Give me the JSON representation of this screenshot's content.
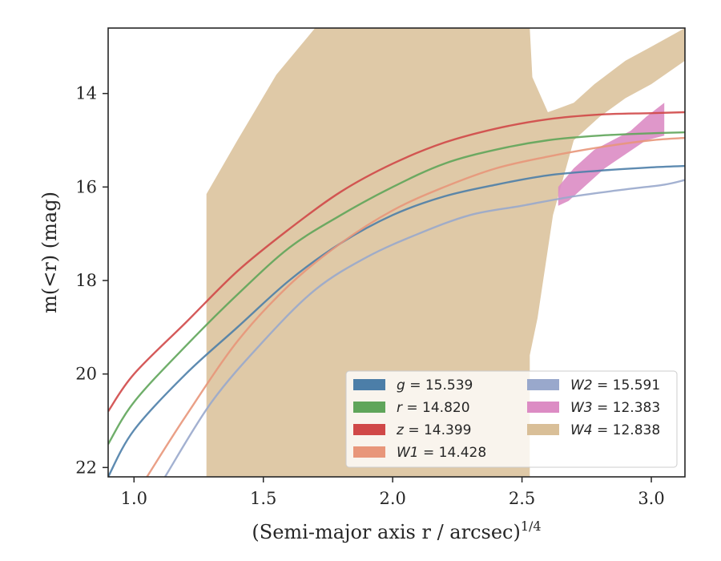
{
  "chart_data": {
    "type": "line",
    "xlabel": "(Semi-major axis r / arcsec)",
    "xlabel_sup": "1/4",
    "ylabel": "m(<r) (mag)",
    "xlim": [
      0.9,
      3.13
    ],
    "ylim": [
      22.2,
      12.6
    ],
    "y_inverted": true,
    "grid": false,
    "legend_location": "lower-right",
    "x_ticks": [
      {
        "value": 1.0,
        "label": "1.0"
      },
      {
        "value": 1.5,
        "label": "1.5"
      },
      {
        "value": 2.0,
        "label": "2.0"
      },
      {
        "value": 2.5,
        "label": "2.5"
      },
      {
        "value": 3.0,
        "label": "3.0"
      }
    ],
    "y_ticks": [
      {
        "value": 14,
        "label": "14"
      },
      {
        "value": 16,
        "label": "16"
      },
      {
        "value": 18,
        "label": "18"
      },
      {
        "value": 20,
        "label": "20"
      },
      {
        "value": 22,
        "label": "22"
      }
    ],
    "series": [
      {
        "name": "g",
        "value": "15.539",
        "color": "#4c7ea8",
        "x": [
          0.9,
          1.0,
          1.2,
          1.4,
          1.6,
          1.8,
          2.0,
          2.2,
          2.4,
          2.6,
          2.8,
          3.0,
          3.13
        ],
        "y": [
          22.2,
          21.2,
          20.0,
          19.0,
          18.0,
          17.2,
          16.6,
          16.2,
          15.95,
          15.75,
          15.65,
          15.58,
          15.55
        ]
      },
      {
        "name": "r",
        "value": "14.820",
        "color": "#5fa55a",
        "x": [
          0.9,
          1.0,
          1.2,
          1.4,
          1.6,
          1.8,
          2.0,
          2.2,
          2.4,
          2.6,
          2.8,
          3.0,
          3.13
        ],
        "y": [
          21.5,
          20.6,
          19.4,
          18.3,
          17.3,
          16.6,
          16.0,
          15.5,
          15.2,
          15.0,
          14.9,
          14.85,
          14.83
        ]
      },
      {
        "name": "z",
        "value": "14.399",
        "color": "#d04848",
        "x": [
          0.9,
          1.0,
          1.2,
          1.4,
          1.6,
          1.8,
          2.0,
          2.2,
          2.4,
          2.6,
          2.8,
          3.0,
          3.13
        ],
        "y": [
          20.8,
          20.0,
          18.9,
          17.8,
          16.9,
          16.1,
          15.5,
          15.05,
          14.75,
          14.55,
          14.45,
          14.42,
          14.4
        ]
      },
      {
        "name": "W1",
        "value": "14.428",
        "color": "#e8967a",
        "x": [
          1.05,
          1.2,
          1.4,
          1.6,
          1.8,
          2.0,
          2.2,
          2.4,
          2.6,
          2.8,
          3.0,
          3.13
        ],
        "y": [
          22.2,
          20.9,
          19.3,
          18.1,
          17.2,
          16.5,
          16.0,
          15.6,
          15.35,
          15.15,
          15.0,
          14.95
        ]
      },
      {
        "name": "W2",
        "value": "15.591",
        "color": "#99a8cc",
        "x": [
          1.12,
          1.3,
          1.5,
          1.7,
          1.9,
          2.1,
          2.3,
          2.5,
          2.7,
          2.9,
          3.05,
          3.13
        ],
        "y": [
          22.2,
          20.6,
          19.3,
          18.2,
          17.5,
          17.0,
          16.6,
          16.4,
          16.2,
          16.05,
          15.95,
          15.85
        ]
      },
      {
        "name": "W3",
        "value": "12.383",
        "color": "#dc8cc4",
        "x": [
          2.65,
          2.7,
          2.8,
          2.9,
          3.0,
          3.05
        ],
        "y": [
          16.2,
          15.7,
          15.4,
          15.1,
          14.8,
          14.5
        ]
      },
      {
        "name": "W4",
        "value": "12.838",
        "color": "#d9bf98",
        "x": [
          1.28,
          1.5,
          1.8,
          2.1,
          2.4,
          2.53,
          2.6,
          2.7,
          2.8,
          2.9,
          3.0,
          3.13
        ],
        "y": [
          21.0,
          20.5,
          19.5,
          18.2,
          17.1,
          16.7,
          16.3,
          15.0,
          14.3,
          13.9,
          13.6,
          13.2
        ]
      }
    ],
    "legend": [
      {
        "name": "g",
        "value": "15.539",
        "color": "#4c7ea8",
        "col": 0
      },
      {
        "name": "r",
        "value": "14.820",
        "color": "#5fa55a",
        "col": 0
      },
      {
        "name": "z",
        "value": "14.399",
        "color": "#d04848",
        "col": 0
      },
      {
        "name": "W1",
        "value": "14.428",
        "color": "#e8967a",
        "col": 0
      },
      {
        "name": "W2",
        "value": "15.591",
        "color": "#99a8cc",
        "col": 1
      },
      {
        "name": "W3",
        "value": "12.383",
        "color": "#dc8cc4",
        "col": 1
      },
      {
        "name": "W4",
        "value": "12.838",
        "color": "#d9bf98",
        "col": 1
      }
    ],
    "w4_band": {
      "upper": [
        [
          1.28,
          16.15
        ],
        [
          1.4,
          15.0
        ],
        [
          1.55,
          13.6
        ],
        [
          1.7,
          12.6
        ],
        [
          2.53,
          12.6
        ],
        [
          2.54,
          13.65
        ],
        [
          2.6,
          14.4
        ],
        [
          2.65,
          14.3
        ],
        [
          2.7,
          14.2
        ],
        [
          2.78,
          13.8
        ],
        [
          2.9,
          13.3
        ],
        [
          3.0,
          13.0
        ],
        [
          3.13,
          12.6
        ]
      ],
      "lower": [
        [
          3.13,
          13.3
        ],
        [
          3.0,
          13.8
        ],
        [
          2.9,
          14.1
        ],
        [
          2.8,
          14.5
        ],
        [
          2.7,
          15.0
        ],
        [
          2.62,
          16.6
        ],
        [
          2.56,
          18.8
        ],
        [
          2.53,
          19.6
        ],
        [
          2.53,
          22.2
        ],
        [
          1.28,
          22.2
        ]
      ]
    },
    "w3_band": {
      "upper": [
        [
          2.64,
          16.0
        ],
        [
          2.7,
          15.6
        ],
        [
          2.78,
          15.2
        ],
        [
          2.85,
          15.0
        ],
        [
          2.92,
          14.8
        ],
        [
          2.98,
          14.5
        ],
        [
          3.05,
          14.2
        ]
      ],
      "lower": [
        [
          3.05,
          14.9
        ],
        [
          2.98,
          15.0
        ],
        [
          2.9,
          15.3
        ],
        [
          2.82,
          15.6
        ],
        [
          2.74,
          16.0
        ],
        [
          2.68,
          16.3
        ],
        [
          2.64,
          16.4
        ]
      ]
    }
  }
}
